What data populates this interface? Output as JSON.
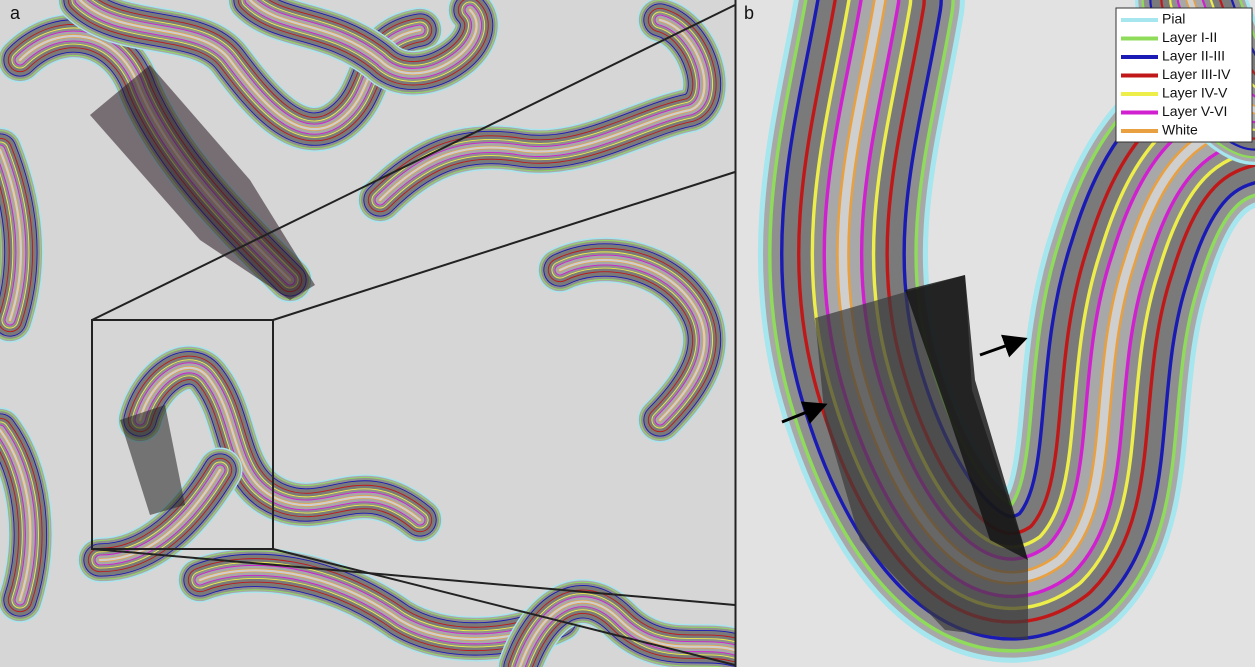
{
  "panels": [
    {
      "label": "a"
    },
    {
      "label": "b"
    }
  ],
  "legend": {
    "items": [
      {
        "name": "Pial",
        "color": "#a6e6ee"
      },
      {
        "name": "Layer I-II",
        "color": "#8fdc5a"
      },
      {
        "name": "Layer II-III",
        "color": "#1a1ab4"
      },
      {
        "name": "Layer III-IV",
        "color": "#c01818"
      },
      {
        "name": "Layer IV-V",
        "color": "#eeee4a"
      },
      {
        "name": "Layer V-VI",
        "color": "#d020d0"
      },
      {
        "name": "White",
        "color": "#e8a040"
      }
    ]
  }
}
